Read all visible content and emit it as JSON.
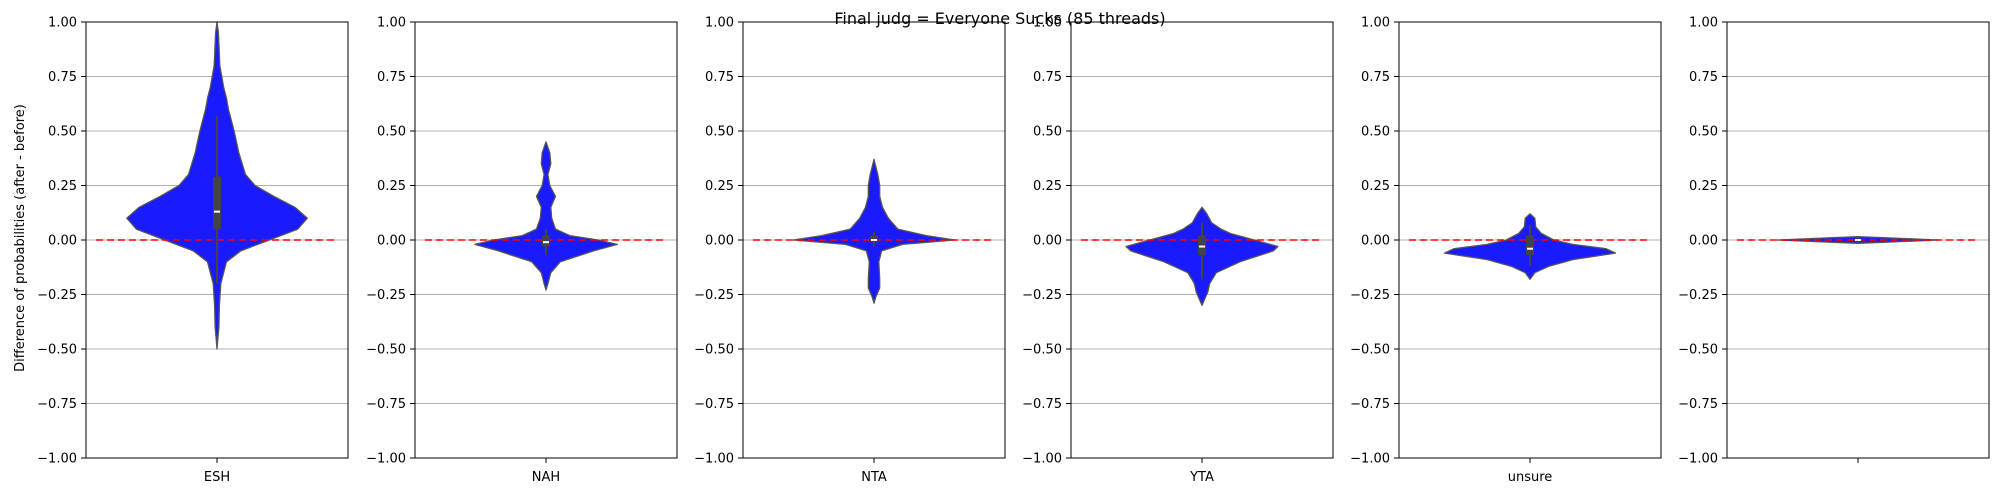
{
  "figure": {
    "title": "Final judg = Everyone Sucks (85 threads)",
    "ylabel": "Difference of probabilities (after - before)"
  },
  "chart_data": {
    "type": "violin",
    "title": "Final judg = Everyone Sucks (85 threads)",
    "ylabel": "Difference of probabilities (after - before)",
    "ylim": [
      -1.0,
      1.0
    ],
    "yticks": [
      -1.0,
      -0.75,
      -0.5,
      -0.25,
      0.0,
      0.25,
      0.5,
      0.75,
      1.0
    ],
    "ytick_labels": [
      "−1.00",
      "−0.75",
      "−0.50",
      "−0.25",
      "0.00",
      "0.25",
      "0.50",
      "0.75",
      "1.00"
    ],
    "grid": "horizontal",
    "reference_line": {
      "y": 0.0,
      "style": "dashed",
      "color": "#ff0000"
    },
    "violin_color": "#1a1aff",
    "edge_color": "#555555",
    "panels": [
      {
        "category": "ESH",
        "profile": [
          [
            -0.5,
            0.0
          ],
          [
            -0.45,
            0.01
          ],
          [
            -0.4,
            0.02
          ],
          [
            -0.3,
            0.025
          ],
          [
            -0.2,
            0.04
          ],
          [
            -0.1,
            0.1
          ],
          [
            -0.05,
            0.25
          ],
          [
            0.0,
            0.55
          ],
          [
            0.05,
            0.85
          ],
          [
            0.1,
            0.95
          ],
          [
            0.15,
            0.82
          ],
          [
            0.2,
            0.6
          ],
          [
            0.25,
            0.4
          ],
          [
            0.3,
            0.3
          ],
          [
            0.4,
            0.23
          ],
          [
            0.5,
            0.18
          ],
          [
            0.6,
            0.12
          ],
          [
            0.65,
            0.1
          ],
          [
            0.7,
            0.07
          ],
          [
            0.8,
            0.03
          ],
          [
            0.9,
            0.02
          ],
          [
            0.95,
            0.015
          ],
          [
            1.0,
            0.0
          ]
        ],
        "box": {
          "q1": 0.05,
          "q3": 0.29,
          "median": 0.13,
          "whisker_low": -0.2,
          "whisker_high": 0.57
        }
      },
      {
        "category": "NAH",
        "profile": [
          [
            -0.23,
            0.0
          ],
          [
            -0.2,
            0.02
          ],
          [
            -0.15,
            0.05
          ],
          [
            -0.1,
            0.15
          ],
          [
            -0.05,
            0.5
          ],
          [
            -0.02,
            0.75
          ],
          [
            0.0,
            0.55
          ],
          [
            0.02,
            0.25
          ],
          [
            0.05,
            0.1
          ],
          [
            0.1,
            0.06
          ],
          [
            0.15,
            0.05
          ],
          [
            0.2,
            0.1
          ],
          [
            0.25,
            0.04
          ],
          [
            0.3,
            0.02
          ],
          [
            0.35,
            0.05
          ],
          [
            0.4,
            0.04
          ],
          [
            0.45,
            0.0
          ]
        ],
        "box": {
          "q1": -0.03,
          "q3": 0.02,
          "median": -0.01,
          "whisker_low": -0.07,
          "whisker_high": 0.05
        }
      },
      {
        "category": "NTA",
        "profile": [
          [
            -0.29,
            0.0
          ],
          [
            -0.26,
            0.02
          ],
          [
            -0.22,
            0.06
          ],
          [
            -0.18,
            0.06
          ],
          [
            -0.1,
            0.05
          ],
          [
            -0.05,
            0.08
          ],
          [
            -0.02,
            0.3
          ],
          [
            0.0,
            0.85
          ],
          [
            0.02,
            0.55
          ],
          [
            0.05,
            0.25
          ],
          [
            0.1,
            0.15
          ],
          [
            0.15,
            0.09
          ],
          [
            0.2,
            0.06
          ],
          [
            0.25,
            0.06
          ],
          [
            0.3,
            0.04
          ],
          [
            0.37,
            0.0
          ]
        ],
        "box": {
          "q1": -0.01,
          "q3": 0.02,
          "median": 0.0,
          "whisker_low": -0.03,
          "whisker_high": 0.04
        }
      },
      {
        "category": "YTA",
        "profile": [
          [
            -0.3,
            0.0
          ],
          [
            -0.27,
            0.03
          ],
          [
            -0.24,
            0.06
          ],
          [
            -0.2,
            0.08
          ],
          [
            -0.15,
            0.15
          ],
          [
            -0.1,
            0.4
          ],
          [
            -0.05,
            0.75
          ],
          [
            -0.03,
            0.8
          ],
          [
            0.0,
            0.55
          ],
          [
            0.03,
            0.3
          ],
          [
            0.05,
            0.2
          ],
          [
            0.08,
            0.1
          ],
          [
            0.12,
            0.05
          ],
          [
            0.15,
            0.0
          ]
        ],
        "box": {
          "q1": -0.07,
          "q3": 0.02,
          "median": -0.03,
          "whisker_low": -0.18,
          "whisker_high": 0.08
        }
      },
      {
        "category": "unsure",
        "profile": [
          [
            -0.18,
            0.0
          ],
          [
            -0.15,
            0.05
          ],
          [
            -0.12,
            0.2
          ],
          [
            -0.09,
            0.45
          ],
          [
            -0.06,
            0.9
          ],
          [
            -0.04,
            0.8
          ],
          [
            -0.02,
            0.45
          ],
          [
            0.0,
            0.25
          ],
          [
            0.03,
            0.12
          ],
          [
            0.06,
            0.06
          ],
          [
            0.1,
            0.05
          ],
          [
            0.12,
            0.0
          ]
        ],
        "box": {
          "q1": -0.07,
          "q3": 0.02,
          "median": -0.04,
          "whisker_low": -0.12,
          "whisker_high": 0.07
        }
      },
      {
        "category": "",
        "profile": [
          [
            -0.015,
            0.0
          ],
          [
            -0.01,
            0.3
          ],
          [
            0.0,
            0.85
          ],
          [
            0.01,
            0.3
          ],
          [
            0.015,
            0.0
          ]
        ],
        "box": {
          "q1": -0.005,
          "q3": 0.005,
          "median": 0.0,
          "whisker_low": -0.01,
          "whisker_high": 0.01
        }
      }
    ]
  }
}
